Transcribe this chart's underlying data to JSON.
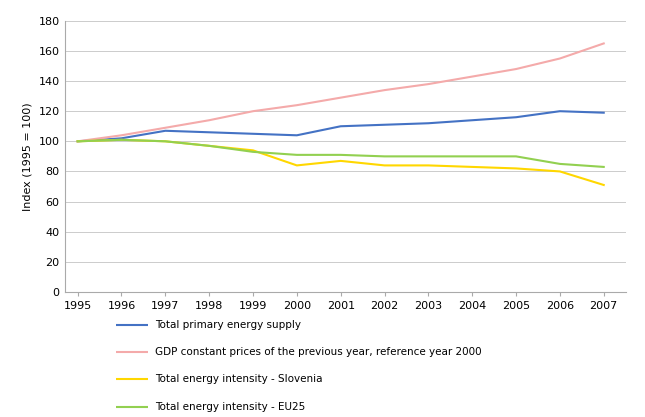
{
  "years": [
    1995,
    1996,
    1997,
    1998,
    1999,
    2000,
    2001,
    2002,
    2003,
    2004,
    2005,
    2006,
    2007
  ],
  "total_primary_energy": [
    100,
    102,
    107,
    106,
    105,
    104,
    110,
    111,
    112,
    114,
    116,
    120,
    119
  ],
  "gdp": [
    100,
    104,
    109,
    114,
    120,
    124,
    129,
    134,
    138,
    143,
    148,
    155,
    165
  ],
  "energy_intensity_slovenia": [
    100,
    101,
    100,
    97,
    94,
    84,
    87,
    84,
    84,
    83,
    82,
    80,
    71
  ],
  "energy_intensity_eu25": [
    100,
    101,
    100,
    97,
    93,
    91,
    91,
    90,
    90,
    90,
    90,
    85,
    83
  ],
  "color_primary_energy": "#4472C4",
  "color_gdp": "#F4AAAA",
  "color_intensity_slovenia": "#FFD700",
  "color_intensity_eu25": "#92D050",
  "ylabel": "Index (1995 = 100)",
  "ylim": [
    0,
    180
  ],
  "yticks": [
    0,
    20,
    40,
    60,
    80,
    100,
    120,
    140,
    160,
    180
  ],
  "legend_labels": [
    "Total primary energy supply",
    "GDP constant prices of the previous year, reference year 2000",
    "Total energy intensity - Slovenia",
    "Total energy intensity - EU25"
  ],
  "background_color": "#FFFFFF",
  "grid_color": "#CCCCCC",
  "linewidth": 1.5
}
